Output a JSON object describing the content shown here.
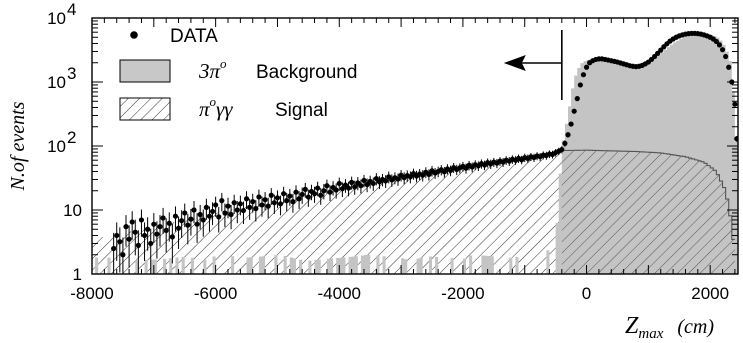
{
  "chart_data": {
    "type": "histogram",
    "xlabel": "Z_max",
    "xlabel_main": "Z",
    "xlabel_sub": "max",
    "xlabel_unit": "(cm)",
    "ylabel": "N.of events",
    "xlim": [
      -8000,
      2450
    ],
    "ylim": [
      1,
      10000
    ],
    "yscale": "log",
    "x_ticks": [
      -8000,
      -6000,
      -4000,
      -2000,
      0,
      2000
    ],
    "x_tick_labels": [
      "-8000",
      "-6000",
      "-4000",
      "-2000",
      "0",
      "2000"
    ],
    "y_ticks": [
      1,
      10,
      100,
      1000,
      10000
    ],
    "y_tick_labels": [
      {
        "base": "1",
        "exp": ""
      },
      {
        "base": "10",
        "exp": ""
      },
      {
        "base": "10",
        "exp": "2"
      },
      {
        "base": "10",
        "exp": "3"
      },
      {
        "base": "10",
        "exp": "4"
      }
    ],
    "legend": {
      "position": "top-left",
      "entries": [
        {
          "key": "data",
          "symbol": "dot",
          "label": "DATA"
        },
        {
          "key": "background",
          "symbol": "gray-box",
          "math_base": "3π",
          "math_sup": "o",
          "label": "Background"
        },
        {
          "key": "signal",
          "symbol": "hatched-box",
          "math_base": "π",
          "math_sup": "o",
          "math_tail": "γγ",
          "label": "Signal"
        }
      ]
    },
    "cut_arrow": {
      "x": -400,
      "direction": "left"
    },
    "bin_width": 50,
    "series": [
      {
        "name": "3π° Background",
        "style": "filled-gray",
        "points": [
          [
            -7600,
            1.8
          ],
          [
            -7400,
            1.6
          ],
          [
            -6900,
            1.7
          ],
          [
            -6400,
            1.9
          ],
          [
            -6300,
            1.5
          ],
          [
            -5950,
            2.0
          ],
          [
            -5500,
            1.8
          ],
          [
            -4950,
            2.0
          ],
          [
            -4550,
            1.6
          ],
          [
            -4250,
            1.7
          ],
          [
            -3700,
            1.9
          ],
          [
            -3550,
            2.0
          ],
          [
            -3000,
            1.8
          ],
          [
            -2850,
            1.6
          ],
          [
            -2600,
            1.9
          ],
          [
            -2250,
            1.8
          ],
          [
            -2000,
            1.7
          ],
          [
            -1850,
            2.0
          ],
          [
            -1200,
            1.8
          ],
          [
            -1050,
            1.9
          ],
          [
            -850,
            2.0
          ],
          [
            -700,
            2.2
          ],
          [
            -500,
            2.6
          ],
          [
            -400,
            90
          ],
          [
            -300,
            300
          ],
          [
            -200,
            1100
          ],
          [
            -100,
            1900
          ],
          [
            0,
            2200
          ],
          [
            200,
            2300
          ],
          [
            400,
            2100
          ],
          [
            600,
            1900
          ],
          [
            800,
            1750
          ],
          [
            1000,
            2000
          ],
          [
            1200,
            2800
          ],
          [
            1400,
            4000
          ],
          [
            1600,
            5200
          ],
          [
            1800,
            5800
          ],
          [
            2000,
            5600
          ],
          [
            2150,
            4800
          ],
          [
            2250,
            3500
          ],
          [
            2350,
            1800
          ],
          [
            2420,
            120
          ]
        ]
      },
      {
        "name": "π°γγ Signal",
        "style": "hatched",
        "points": [
          [
            -8000,
            3.5
          ],
          [
            -7000,
            5.5
          ],
          [
            -6000,
            9
          ],
          [
            -5000,
            14
          ],
          [
            -4000,
            22
          ],
          [
            -3000,
            33
          ],
          [
            -2000,
            47
          ],
          [
            -1000,
            63
          ],
          [
            -400,
            85
          ],
          [
            0,
            86
          ],
          [
            400,
            84
          ],
          [
            800,
            82
          ],
          [
            1200,
            78
          ],
          [
            1600,
            68
          ],
          [
            1900,
            56
          ],
          [
            2100,
            40
          ],
          [
            2250,
            20
          ],
          [
            2350,
            6
          ],
          [
            2400,
            2
          ]
        ]
      },
      {
        "name": "DATA",
        "style": "points",
        "points": [
          [
            -7650,
            2.5
          ],
          [
            -7600,
            4.0
          ],
          [
            -7550,
            3.2
          ],
          [
            -7500,
            2.0
          ],
          [
            -7450,
            5.5
          ],
          [
            -7400,
            3.5
          ],
          [
            -7350,
            6.5
          ],
          [
            -7300,
            4.5
          ],
          [
            -7250,
            2.8
          ],
          [
            -7200,
            7.0
          ],
          [
            -7150,
            4.0
          ],
          [
            -7100,
            5.0
          ],
          [
            -7050,
            3.0
          ],
          [
            -7000,
            6.0
          ],
          [
            -6950,
            4.2
          ],
          [
            -6900,
            5.5
          ],
          [
            -6850,
            7.5
          ],
          [
            -6800,
            4.8
          ],
          [
            -6750,
            6.2
          ],
          [
            -6700,
            3.8
          ],
          [
            -6650,
            8.0
          ],
          [
            -6600,
            5.2
          ],
          [
            -6550,
            6.8
          ],
          [
            -6500,
            9.0
          ],
          [
            -6450,
            5.8
          ],
          [
            -6400,
            7.2
          ],
          [
            -6350,
            10.0
          ],
          [
            -6300,
            6.0
          ],
          [
            -6250,
            8.5
          ],
          [
            -6200,
            7.0
          ],
          [
            -6150,
            11.0
          ],
          [
            -6100,
            8.0
          ],
          [
            -6050,
            9.5
          ],
          [
            -6000,
            12.0
          ],
          [
            -5950,
            7.8
          ],
          [
            -5900,
            14.0
          ],
          [
            -5850,
            9.0
          ],
          [
            -5800,
            11.5
          ],
          [
            -5750,
            8.5
          ],
          [
            -5700,
            13.0
          ],
          [
            -5650,
            10.0
          ],
          [
            -5600,
            12.5
          ],
          [
            -5550,
            9.8
          ],
          [
            -5500,
            15.0
          ],
          [
            -5450,
            11.0
          ],
          [
            -5400,
            13.5
          ],
          [
            -5350,
            10.5
          ],
          [
            -5300,
            16.0
          ],
          [
            -5250,
            12.0
          ],
          [
            -5200,
            14.5
          ],
          [
            -5150,
            11.5
          ],
          [
            -5100,
            17.0
          ],
          [
            -5050,
            13.0
          ],
          [
            -5000,
            15.5
          ],
          [
            -4950,
            12.5
          ],
          [
            -4900,
            18.0
          ],
          [
            -4850,
            14.0
          ],
          [
            -4800,
            16.5
          ],
          [
            -4750,
            13.5
          ],
          [
            -4700,
            19.0
          ],
          [
            -4650,
            15.0
          ],
          [
            -4600,
            17.5
          ],
          [
            -4550,
            21.0
          ],
          [
            -4500,
            16.0
          ],
          [
            -4450,
            19.5
          ],
          [
            -4400,
            18.0
          ],
          [
            -4350,
            22.0
          ],
          [
            -4300,
            17.0
          ],
          [
            -4250,
            20.0
          ],
          [
            -4200,
            24.0
          ],
          [
            -4150,
            19.0
          ],
          [
            -4100,
            22.5
          ],
          [
            -4050,
            20.5
          ],
          [
            -4000,
            26.0
          ],
          [
            -3950,
            21.5
          ],
          [
            -3900,
            24.5
          ],
          [
            -3850,
            22.0
          ],
          [
            -3800,
            27.0
          ],
          [
            -3750,
            23.0
          ],
          [
            -3700,
            26.5
          ],
          [
            -3650,
            24.0
          ],
          [
            -3600,
            29.0
          ],
          [
            -3550,
            25.0
          ],
          [
            -3500,
            28.0
          ],
          [
            -3450,
            26.0
          ],
          [
            -3400,
            31.0
          ],
          [
            -3350,
            27.5
          ],
          [
            -3300,
            30.0
          ],
          [
            -3250,
            28.5
          ],
          [
            -3200,
            33.0
          ],
          [
            -3150,
            29.5
          ],
          [
            -3100,
            32.0
          ],
          [
            -3050,
            30.5
          ],
          [
            -3000,
            35.0
          ],
          [
            -2950,
            32.0
          ],
          [
            -2900,
            34.5
          ],
          [
            -2850,
            33.0
          ],
          [
            -2800,
            37.0
          ],
          [
            -2750,
            34.0
          ],
          [
            -2700,
            36.5
          ],
          [
            -2650,
            35.0
          ],
          [
            -2600,
            39.0
          ],
          [
            -2550,
            36.0
          ],
          [
            -2500,
            41.0
          ],
          [
            -2450,
            38.0
          ],
          [
            -2400,
            40.0
          ],
          [
            -2350,
            42.5
          ],
          [
            -2300,
            39.5
          ],
          [
            -2250,
            44.0
          ],
          [
            -2200,
            41.5
          ],
          [
            -2150,
            46.0
          ],
          [
            -2100,
            43.0
          ],
          [
            -2050,
            45.5
          ],
          [
            -2000,
            48.0
          ],
          [
            -1950,
            45.0
          ],
          [
            -1900,
            50.0
          ],
          [
            -1850,
            47.0
          ],
          [
            -1800,
            51.0
          ],
          [
            -1750,
            49.0
          ],
          [
            -1700,
            53.0
          ],
          [
            -1650,
            50.5
          ],
          [
            -1600,
            55.0
          ],
          [
            -1550,
            52.5
          ],
          [
            -1500,
            56.0
          ],
          [
            -1450,
            54.0
          ],
          [
            -1400,
            58.0
          ],
          [
            -1350,
            56.0
          ],
          [
            -1300,
            60.0
          ],
          [
            -1250,
            58.0
          ],
          [
            -1200,
            62.0
          ],
          [
            -1150,
            60.0
          ],
          [
            -1100,
            64.0
          ],
          [
            -1050,
            61.0
          ],
          [
            -1000,
            66.0
          ],
          [
            -950,
            64.0
          ],
          [
            -900,
            68.0
          ],
          [
            -850,
            66.0
          ],
          [
            -800,
            70.0
          ],
          [
            -750,
            68.0
          ],
          [
            -700,
            72.0
          ],
          [
            -650,
            71.0
          ],
          [
            -600,
            75.0
          ],
          [
            -550,
            74.0
          ],
          [
            -500,
            79.0
          ],
          [
            -450,
            83.0
          ],
          [
            -400,
            88.0
          ],
          [
            -350,
            110.0
          ],
          [
            -300,
            150.0
          ],
          [
            -250,
            220.0
          ],
          [
            -200,
            350.0
          ],
          [
            -150,
            550.0
          ],
          [
            -100,
            900.0
          ],
          [
            -50,
            1300.0
          ],
          [
            0,
            1700.0
          ],
          [
            50,
            2000.0
          ],
          [
            100,
            2150.0
          ],
          [
            150,
            2250.0
          ],
          [
            200,
            2300.0
          ],
          [
            250,
            2300.0
          ],
          [
            300,
            2250.0
          ],
          [
            350,
            2200.0
          ],
          [
            400,
            2150.0
          ],
          [
            450,
            2100.0
          ],
          [
            500,
            2050.0
          ],
          [
            550,
            1980.0
          ],
          [
            600,
            1920.0
          ],
          [
            650,
            1860.0
          ],
          [
            700,
            1800.0
          ],
          [
            750,
            1760.0
          ],
          [
            800,
            1740.0
          ],
          [
            850,
            1760.0
          ],
          [
            900,
            1820.0
          ],
          [
            950,
            1920.0
          ],
          [
            1000,
            2050.0
          ],
          [
            1050,
            2250.0
          ],
          [
            1100,
            2500.0
          ],
          [
            1150,
            2800.0
          ],
          [
            1200,
            3150.0
          ],
          [
            1250,
            3550.0
          ],
          [
            1300,
            3950.0
          ],
          [
            1350,
            4350.0
          ],
          [
            1400,
            4700.0
          ],
          [
            1450,
            5000.0
          ],
          [
            1500,
            5250.0
          ],
          [
            1550,
            5450.0
          ],
          [
            1600,
            5600.0
          ],
          [
            1650,
            5700.0
          ],
          [
            1700,
            5750.0
          ],
          [
            1750,
            5750.0
          ],
          [
            1800,
            5700.0
          ],
          [
            1850,
            5600.0
          ],
          [
            1900,
            5450.0
          ],
          [
            1950,
            5250.0
          ],
          [
            2000,
            5000.0
          ],
          [
            2050,
            4700.0
          ],
          [
            2100,
            4300.0
          ],
          [
            2150,
            3800.0
          ],
          [
            2200,
            3200.0
          ],
          [
            2250,
            2500.0
          ],
          [
            2300,
            1700.0
          ],
          [
            2350,
            1000.0
          ],
          [
            2400,
            450.0
          ],
          [
            2430,
            130.0
          ]
        ]
      }
    ]
  }
}
